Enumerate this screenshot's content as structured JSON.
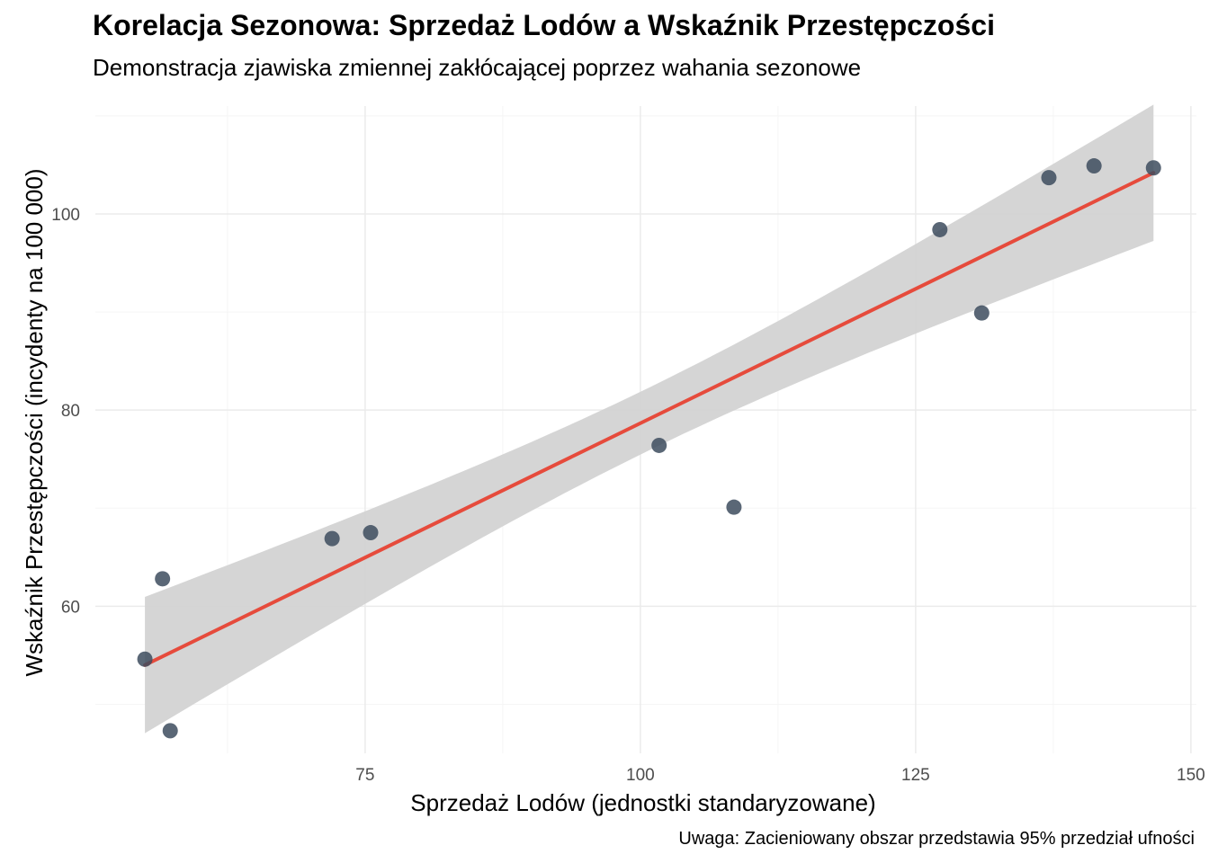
{
  "chart_data": {
    "type": "scatter",
    "title": "Korelacja Sezonowa: Sprzedaż Lodów a Wskaźnik Przestępczości",
    "subtitle": "Demonstracja zjawiska zmiennej zakłócającej poprzez wahania sezonowe",
    "xlabel": "Sprzedaż Lodów (jednostki standaryzowane)",
    "ylabel": "Wskaźnik Przestępczości (incydenty na 100 000)",
    "caption": "Uwaga: Zacieniowany obszar przedstawia 95% przedział ufności",
    "xlim": [
      50.5,
      150.5
    ],
    "ylim": [
      45,
      111
    ],
    "x_ticks": [
      75,
      100,
      125,
      150
    ],
    "y_ticks": [
      60,
      80,
      100
    ],
    "x_minor": [
      62.5,
      87.5,
      112.5,
      137.5
    ],
    "y_minor": [
      50,
      70,
      90,
      110
    ],
    "grid": true,
    "points": [
      {
        "x": 55.0,
        "y": 54.6
      },
      {
        "x": 56.6,
        "y": 62.8
      },
      {
        "x": 57.3,
        "y": 47.3
      },
      {
        "x": 72.0,
        "y": 66.9
      },
      {
        "x": 75.5,
        "y": 67.5
      },
      {
        "x": 101.7,
        "y": 76.4
      },
      {
        "x": 108.5,
        "y": 70.1
      },
      {
        "x": 127.2,
        "y": 98.4
      },
      {
        "x": 131.0,
        "y": 89.9
      },
      {
        "x": 137.1,
        "y": 103.7
      },
      {
        "x": 141.2,
        "y": 104.9
      },
      {
        "x": 146.6,
        "y": 104.7
      }
    ],
    "trend": {
      "method": "linear regression",
      "x": [
        55.0,
        146.6
      ],
      "y": [
        54.0,
        104.2
      ],
      "ci_upper": [
        60.9,
        111.0
      ],
      "ci_lower": [
        47.0,
        97.1
      ],
      "ci_mid_x": 100.8,
      "ci_mid_half_width": 3.2
    },
    "colors": {
      "point": "#3d4c5e",
      "line": "#e64b3c",
      "ribbon": "#d3d3d3",
      "grid_major": "#ebebeb",
      "grid_minor": "#f5f5f5"
    }
  }
}
